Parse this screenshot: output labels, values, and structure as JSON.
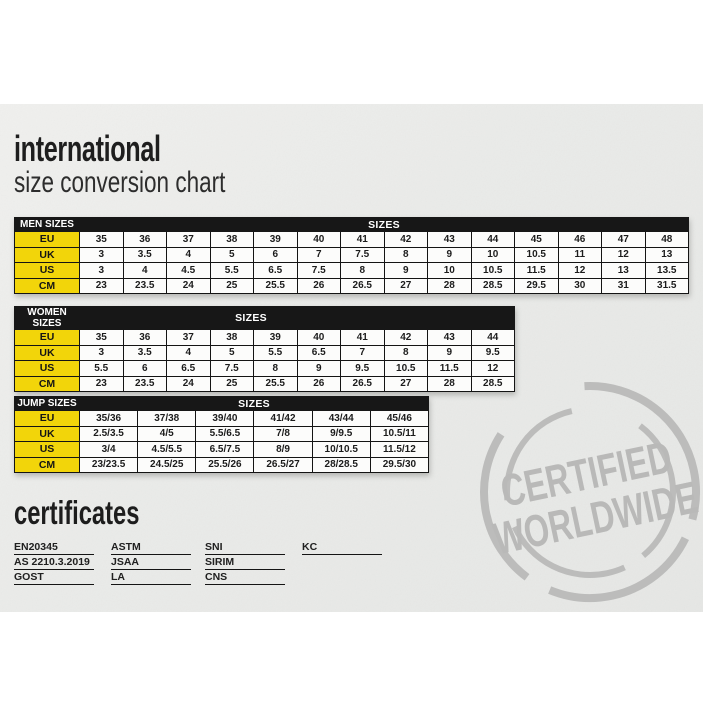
{
  "title": {
    "line1": "international",
    "line2": "size conversion chart"
  },
  "tables": [
    {
      "name": "MEN SIZES",
      "sizes_header": "SIZES",
      "rows": [
        {
          "label": "EU",
          "values": [
            "35",
            "36",
            "37",
            "38",
            "39",
            "40",
            "41",
            "42",
            "43",
            "44",
            "45",
            "46",
            "47",
            "48"
          ]
        },
        {
          "label": "UK",
          "values": [
            "3",
            "3.5",
            "4",
            "5",
            "6",
            "7",
            "7.5",
            "8",
            "9",
            "10",
            "10.5",
            "11",
            "12",
            "13"
          ]
        },
        {
          "label": "US",
          "values": [
            "3",
            "4",
            "4.5",
            "5.5",
            "6.5",
            "7.5",
            "8",
            "9",
            "10",
            "10.5",
            "11.5",
            "12",
            "13",
            "13.5"
          ]
        },
        {
          "label": "CM",
          "values": [
            "23",
            "23.5",
            "24",
            "25",
            "25.5",
            "26",
            "26.5",
            "27",
            "28",
            "28.5",
            "29.5",
            "30",
            "31",
            "31.5"
          ]
        }
      ]
    },
    {
      "name": "WOMEN SIZES",
      "sizes_header": "SIZES",
      "rows": [
        {
          "label": "EU",
          "values": [
            "35",
            "36",
            "37",
            "38",
            "39",
            "40",
            "41",
            "42",
            "43",
            "44"
          ]
        },
        {
          "label": "UK",
          "values": [
            "3",
            "3.5",
            "4",
            "5",
            "5.5",
            "6.5",
            "7",
            "8",
            "9",
            "9.5"
          ]
        },
        {
          "label": "US",
          "values": [
            "5.5",
            "6",
            "6.5",
            "7.5",
            "8",
            "9",
            "9.5",
            "10.5",
            "11.5",
            "12"
          ]
        },
        {
          "label": "CM",
          "values": [
            "23",
            "23.5",
            "24",
            "25",
            "25.5",
            "26",
            "26.5",
            "27",
            "28",
            "28.5"
          ]
        }
      ]
    },
    {
      "name": "JUMP SIZES",
      "sizes_header": "SIZES",
      "rows": [
        {
          "label": "EU",
          "values": [
            "35/36",
            "37/38",
            "39/40",
            "41/42",
            "43/44",
            "45/46"
          ]
        },
        {
          "label": "UK",
          "values": [
            "2.5/3.5",
            "4/5",
            "5.5/6.5",
            "7/8",
            "9/9.5",
            "10.5/11"
          ]
        },
        {
          "label": "US",
          "values": [
            "3/4",
            "4.5/5.5",
            "6.5/7.5",
            "8/9",
            "10/10.5",
            "11.5/12"
          ]
        },
        {
          "label": "CM",
          "values": [
            "23/23.5",
            "24.5/25",
            "25.5/26",
            "26.5/27",
            "28/28.5",
            "29.5/30"
          ]
        }
      ]
    }
  ],
  "certificates": {
    "title": "certificates",
    "columns": [
      [
        "EN20345",
        "AS 2210.3.2019",
        "GOST"
      ],
      [
        "ASTM",
        "JSAA",
        "LA"
      ],
      [
        "SNI",
        "SIRIM",
        "CNS"
      ],
      [
        "KC"
      ]
    ]
  },
  "stamp": {
    "line1": "CERTIFIED",
    "line2": "WORLDWIDE"
  },
  "colors": {
    "accent_yellow": "#F2D50A",
    "header_black": "#171717",
    "stamp_gray": "#b9b9b8",
    "band_bg": "#eaebe9"
  }
}
